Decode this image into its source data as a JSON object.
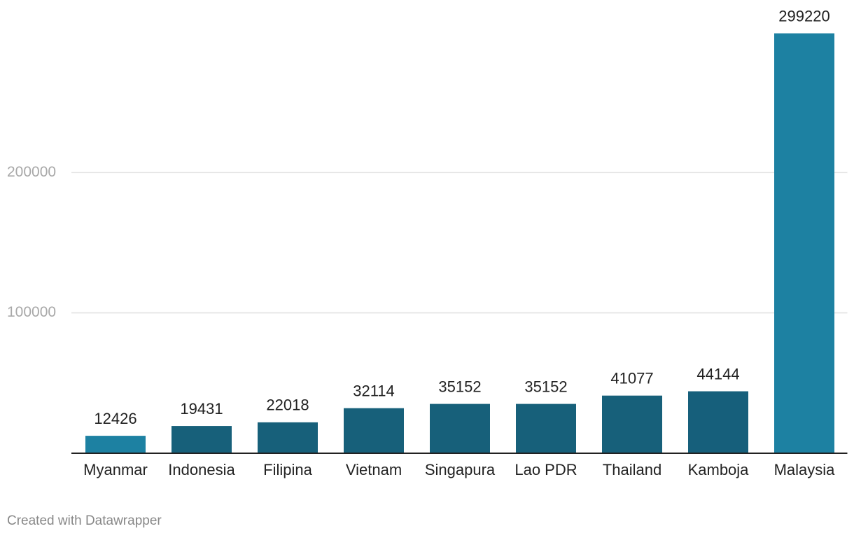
{
  "chart_data": {
    "type": "bar",
    "categories": [
      "Myanmar",
      "Indonesia",
      "Filipina",
      "Vietnam",
      "Singapura",
      "Lao PDR",
      "Thailand",
      "Kamboja",
      "Malaysia"
    ],
    "values": [
      12426,
      19431,
      22018,
      32114,
      35152,
      35152,
      41077,
      44144,
      299220
    ],
    "colors": [
      "#1d81a2",
      "#17607a",
      "#17607a",
      "#17607a",
      "#17607a",
      "#17607a",
      "#17607a",
      "#165f7b",
      "#1d81a2"
    ],
    "ylim": [
      0,
      300000
    ],
    "yticks": [
      100000,
      200000
    ],
    "grid": true,
    "footer": "Created with Datawrapper"
  }
}
